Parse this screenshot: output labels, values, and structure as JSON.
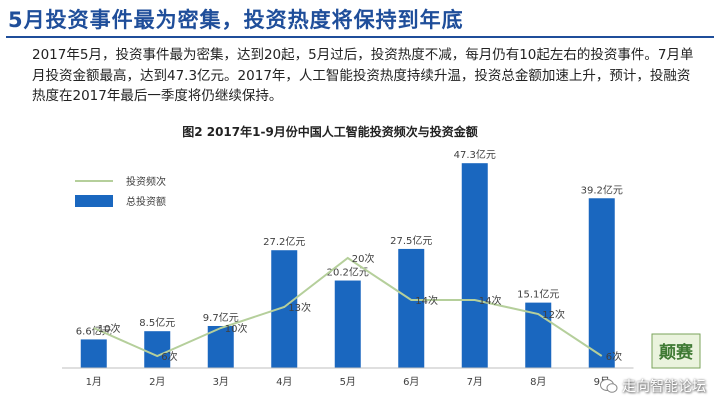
{
  "slide": {
    "title": "5月投资事件最为密集，投资热度将保持到年底",
    "body": "2017年5月，投资事件最为密集，达到20起，5月过后，投资热度不减，每月仍有10起左右的投资事件。7月单月投资金额最高，达到47.3亿元。2017年，人工智能投资热度持续升温，投资总金额加速上升，预计，投融资热度在2017年最后一季度将仍继续保持。"
  },
  "chart_data": {
    "type": "bar",
    "title": "图2  2017年1-9月份中国人工智能投资频次与投资金额",
    "categories": [
      "1月",
      "2月",
      "3月",
      "4月",
      "5月",
      "6月",
      "7月",
      "8月",
      "9月"
    ],
    "series": [
      {
        "name": "总投资额",
        "type": "bar",
        "values": [
          6.6,
          8.5,
          9.7,
          27.2,
          20.2,
          27.5,
          47.3,
          15.1,
          39.2
        ],
        "labels": [
          "6.6亿元",
          "8.5亿元",
          "9.7亿元",
          "27.2亿元",
          "20.2亿元",
          "27.5亿元",
          "47.3亿元",
          "15.1亿元",
          "39.2亿元"
        ],
        "color": "#1a67bf"
      },
      {
        "name": "投资频次",
        "type": "line",
        "values": [
          10,
          6,
          10,
          13,
          20,
          14,
          14,
          12,
          6
        ],
        "labels": [
          "10次",
          "6次",
          "10次",
          "13次",
          "20次",
          "14次",
          "14次",
          "12次",
          "6次"
        ],
        "color": "#b5cf9b"
      }
    ],
    "legend": "top-left"
  },
  "watermark": {
    "logo_text": "颠赛",
    "account": "走向智能论坛"
  }
}
